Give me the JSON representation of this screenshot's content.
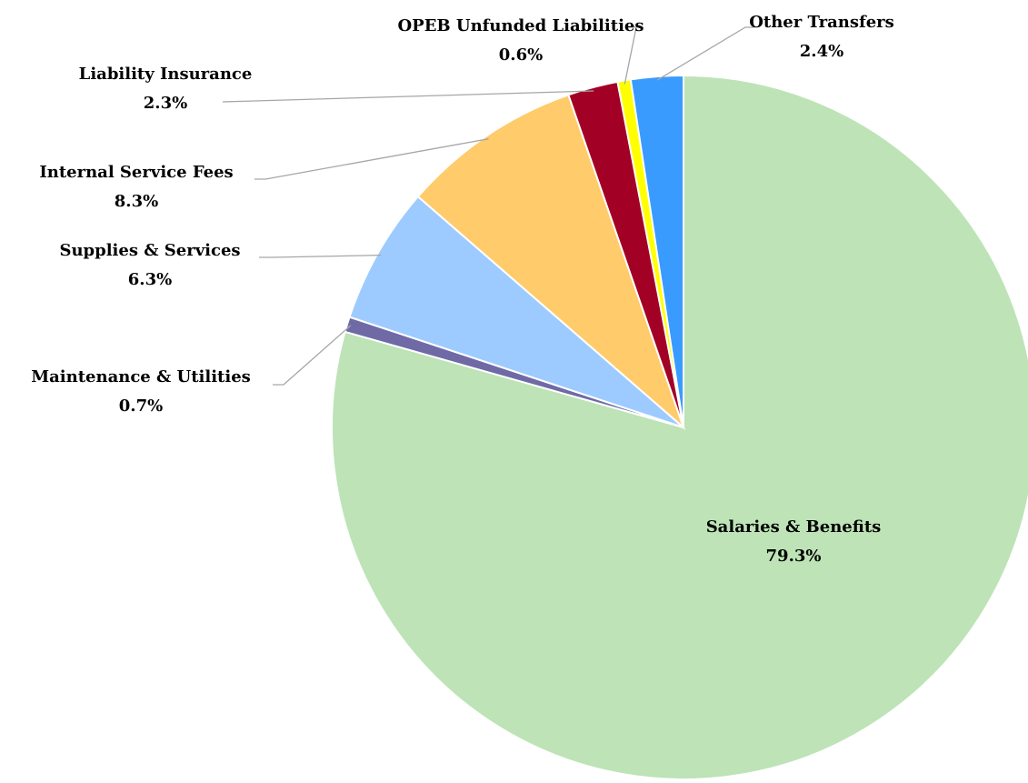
{
  "chart_data": {
    "type": "pie",
    "categories": [
      "Salaries & Benefits",
      "Maintenance & Utilities",
      "Supplies & Services",
      "Internal Service Fees",
      "Liability Insurance",
      "OPEB Unfunded Liabilities",
      "Other Transfers"
    ],
    "values": [
      79.3,
      0.7,
      6.3,
      8.3,
      2.3,
      0.6,
      2.4
    ],
    "value_labels": [
      "79.3%",
      "0.7%",
      "6.3%",
      "8.3%",
      "2.3%",
      "0.6%",
      "2.4%"
    ],
    "colors": [
      "#bde3b6",
      "#6f6aa6",
      "#9dcbff",
      "#ffcb6b",
      "#a20025",
      "#ffff00",
      "#3a9bff"
    ]
  }
}
